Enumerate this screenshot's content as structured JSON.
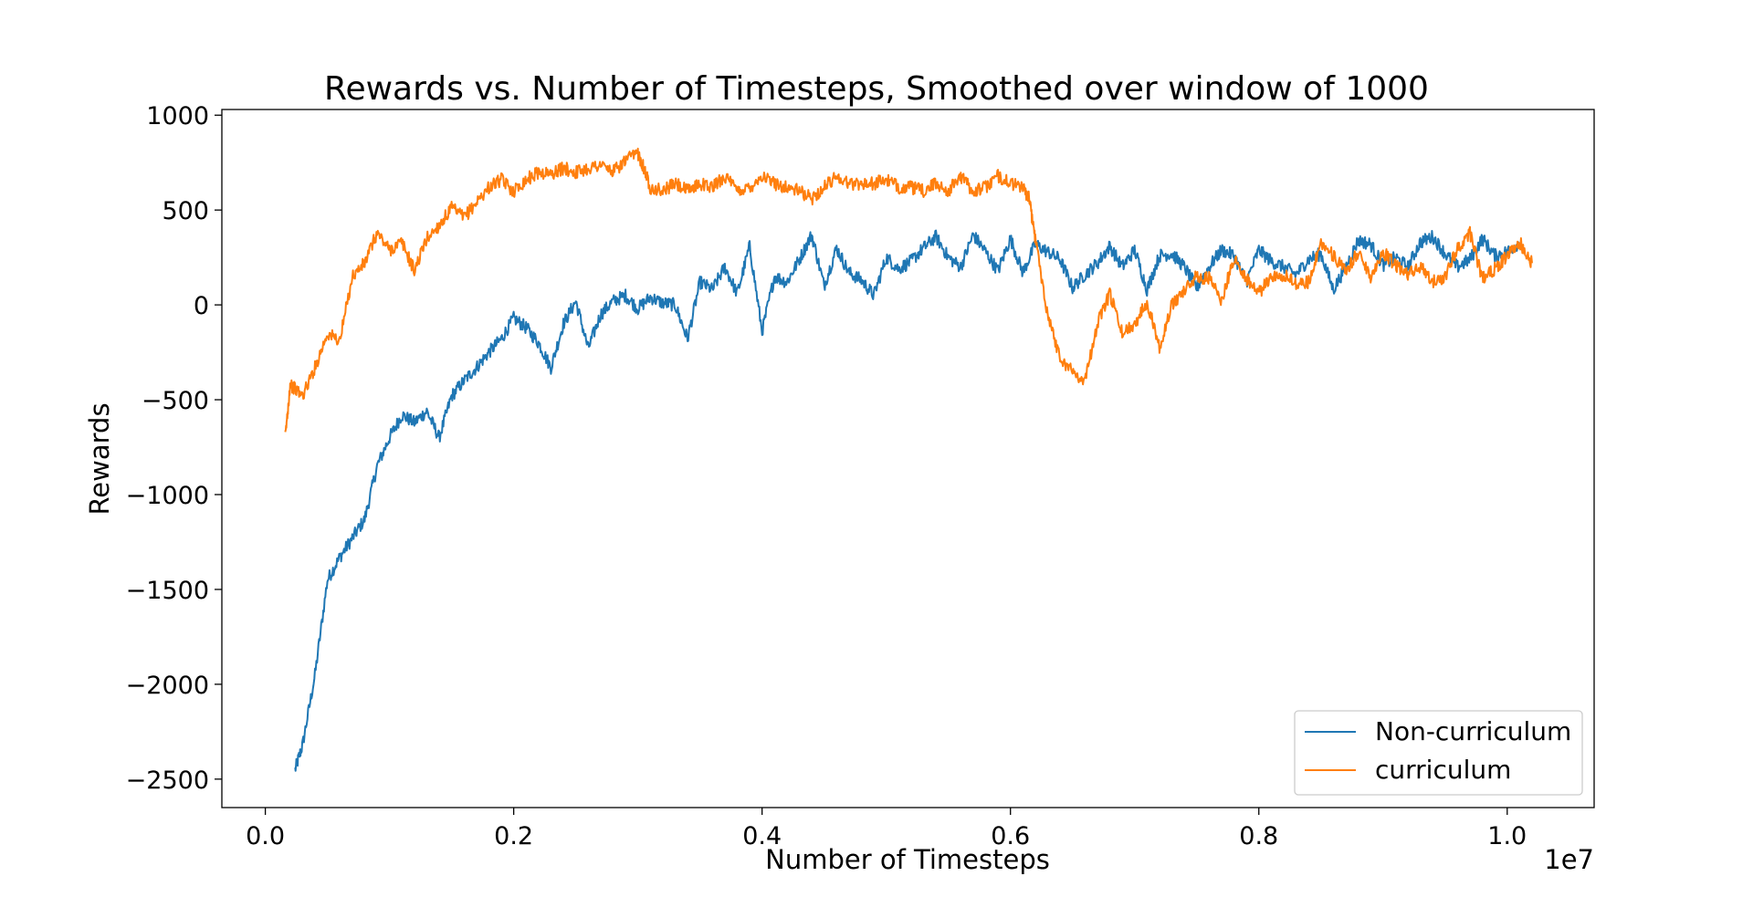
{
  "chart_data": {
    "type": "line",
    "title": "Rewards vs. Number of Timesteps, Smoothed over window of 1000",
    "xlabel": "Number of Timesteps",
    "ylabel": "Rewards",
    "x_offset_label": "1e7",
    "x_tick_labels": [
      "0.0",
      "0.2",
      "0.4",
      "0.6",
      "0.8",
      "1.0"
    ],
    "y_tick_labels": [
      "1000",
      "500",
      "0",
      "−500",
      "−1000",
      "−1500",
      "−2000",
      "−2500"
    ],
    "xlim": [
      -0.035,
      1.07
    ],
    "ylim": [
      -2650,
      1030
    ],
    "x_ticks": [
      0.0,
      0.2,
      0.4,
      0.6,
      0.8,
      1.0
    ],
    "y_ticks": [
      1000,
      500,
      0,
      -500,
      -1000,
      -1500,
      -2000,
      -2500
    ],
    "grid": false,
    "legend_position": "bottom-right",
    "series": [
      {
        "name": "Non-curriculum",
        "color": "#1f77b4",
        "x": [
          0.024,
          0.03,
          0.04,
          0.05,
          0.06,
          0.07,
          0.08,
          0.09,
          0.1,
          0.11,
          0.12,
          0.13,
          0.14,
          0.15,
          0.16,
          0.17,
          0.18,
          0.19,
          0.2,
          0.21,
          0.22,
          0.23,
          0.24,
          0.25,
          0.26,
          0.27,
          0.28,
          0.29,
          0.3,
          0.31,
          0.32,
          0.33,
          0.34,
          0.35,
          0.36,
          0.37,
          0.38,
          0.39,
          0.4,
          0.41,
          0.42,
          0.43,
          0.44,
          0.45,
          0.46,
          0.47,
          0.48,
          0.49,
          0.5,
          0.51,
          0.52,
          0.53,
          0.54,
          0.55,
          0.56,
          0.57,
          0.58,
          0.59,
          0.6,
          0.61,
          0.62,
          0.63,
          0.64,
          0.65,
          0.66,
          0.67,
          0.68,
          0.69,
          0.7,
          0.71,
          0.72,
          0.73,
          0.74,
          0.75,
          0.76,
          0.77,
          0.78,
          0.79,
          0.8,
          0.81,
          0.82,
          0.83,
          0.84,
          0.85,
          0.86,
          0.87,
          0.88,
          0.89,
          0.9,
          0.91,
          0.92,
          0.93,
          0.94,
          0.95,
          0.96,
          0.97,
          0.98,
          0.99,
          1.0,
          1.01
        ],
        "y": [
          -2450,
          -2320,
          -1950,
          -1450,
          -1330,
          -1230,
          -1130,
          -850,
          -700,
          -580,
          -620,
          -560,
          -700,
          -480,
          -400,
          -330,
          -250,
          -180,
          -70,
          -120,
          -200,
          -330,
          -100,
          20,
          -230,
          -50,
          20,
          50,
          -20,
          40,
          10,
          0,
          -180,
          120,
          80,
          200,
          60,
          310,
          -140,
          150,
          120,
          240,
          370,
          100,
          300,
          170,
          130,
          50,
          250,
          190,
          230,
          300,
          360,
          250,
          200,
          370,
          280,
          180,
          350,
          170,
          320,
          280,
          240,
          90,
          160,
          220,
          310,
          200,
          290,
          80,
          260,
          270,
          200,
          90,
          200,
          290,
          260,
          120,
          290,
          230,
          200,
          160,
          240,
          270,
          80,
          200,
          340,
          320,
          210,
          250,
          200,
          330,
          360,
          270,
          200,
          240,
          350,
          260,
          280,
          330
        ]
      },
      {
        "name": "curriculum",
        "color": "#ff7f0e",
        "x": [
          0.016,
          0.02,
          0.03,
          0.04,
          0.05,
          0.06,
          0.07,
          0.08,
          0.09,
          0.1,
          0.11,
          0.12,
          0.13,
          0.14,
          0.15,
          0.16,
          0.17,
          0.18,
          0.19,
          0.2,
          0.21,
          0.22,
          0.23,
          0.24,
          0.25,
          0.26,
          0.27,
          0.28,
          0.29,
          0.3,
          0.305,
          0.31,
          0.32,
          0.33,
          0.34,
          0.35,
          0.36,
          0.37,
          0.38,
          0.39,
          0.4,
          0.41,
          0.42,
          0.43,
          0.44,
          0.45,
          0.46,
          0.47,
          0.48,
          0.49,
          0.5,
          0.51,
          0.52,
          0.53,
          0.54,
          0.55,
          0.56,
          0.57,
          0.58,
          0.59,
          0.6,
          0.61,
          0.615,
          0.62,
          0.63,
          0.64,
          0.65,
          0.66,
          0.67,
          0.68,
          0.69,
          0.7,
          0.71,
          0.72,
          0.73,
          0.74,
          0.75,
          0.76,
          0.77,
          0.78,
          0.79,
          0.8,
          0.81,
          0.82,
          0.83,
          0.84,
          0.85,
          0.86,
          0.87,
          0.88,
          0.89,
          0.9,
          0.91,
          0.92,
          0.93,
          0.94,
          0.95,
          0.96,
          0.97,
          0.98,
          0.99,
          1.0,
          1.01,
          1.02
        ],
        "y": [
          -700,
          -420,
          -480,
          -330,
          -150,
          -190,
          150,
          220,
          380,
          290,
          330,
          180,
          350,
          420,
          510,
          460,
          540,
          620,
          660,
          600,
          660,
          700,
          690,
          720,
          700,
          720,
          740,
          700,
          760,
          800,
          720,
          620,
          600,
          640,
          600,
          640,
          620,
          680,
          600,
          620,
          680,
          640,
          620,
          600,
          560,
          620,
          680,
          640,
          640,
          640,
          660,
          620,
          620,
          600,
          640,
          600,
          680,
          600,
          620,
          680,
          640,
          620,
          560,
          350,
          -50,
          -280,
          -350,
          -400,
          -100,
          60,
          -150,
          -100,
          20,
          -220,
          0,
          80,
          150,
          140,
          20,
          250,
          140,
          60,
          150,
          160,
          110,
          120,
          330,
          260,
          170,
          280,
          150,
          280,
          210,
          160,
          200,
          120,
          150,
          300,
          380,
          140,
          190,
          260,
          330,
          220
        ]
      }
    ]
  }
}
